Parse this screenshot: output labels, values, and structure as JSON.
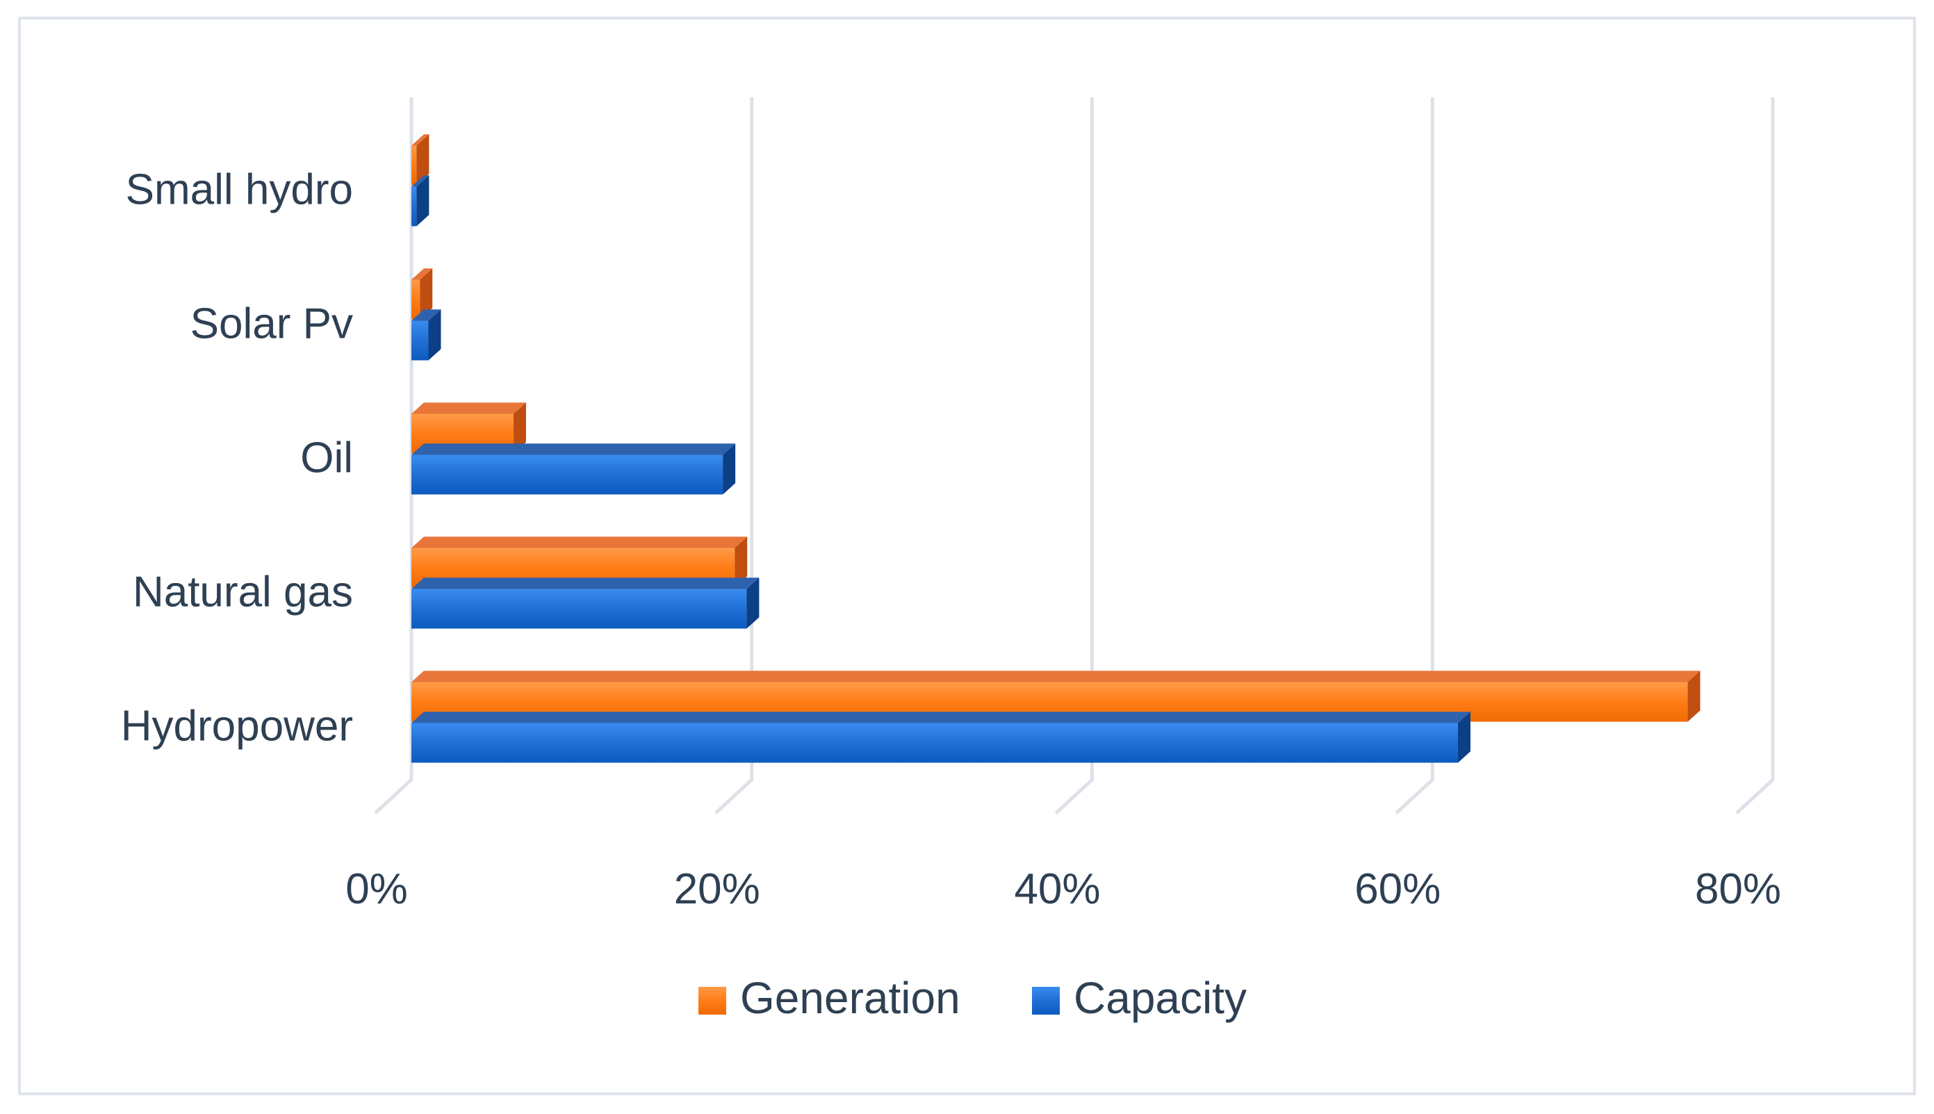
{
  "chart_data": {
    "type": "bar",
    "orientation": "horizontal",
    "style": "3d",
    "title": "",
    "xlabel": "",
    "ylabel": "",
    "categories": [
      "Hydropower",
      "Natural gas",
      "Oil",
      "Solar Pv",
      "Small hydro"
    ],
    "series": [
      {
        "name": "Generation",
        "color": "#ff7f1e",
        "values": [
          75,
          19,
          6,
          0.5,
          0.3
        ]
      },
      {
        "name": "Capacity",
        "color": "#1f6fd6",
        "values": [
          61.5,
          19.7,
          18.3,
          1,
          0.3
        ]
      }
    ],
    "xlim": [
      0,
      80
    ],
    "xticks": [
      0,
      20,
      40,
      60,
      80
    ],
    "xtick_labels": [
      "0%",
      "20%",
      "40%",
      "60%",
      "80%"
    ],
    "grid": true,
    "legend_position": "bottom"
  }
}
